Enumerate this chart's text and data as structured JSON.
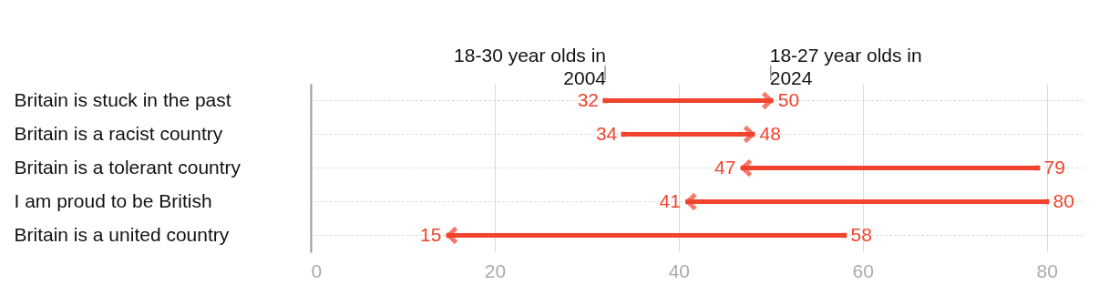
{
  "chart_data": {
    "type": "scatter",
    "categories": [
      "Britain is stuck in the past",
      "Britain is a racist country",
      "Britain is a tolerant country",
      "I am proud to be British",
      "Britain is a united country"
    ],
    "series": [
      {
        "name": "18-30 year olds in 2004",
        "color": "#f2432d",
        "values": [
          32,
          34,
          79,
          80,
          58
        ]
      },
      {
        "name": "18-27 year olds in 2024",
        "color": "#f2432d",
        "values": [
          50,
          48,
          47,
          41,
          15
        ]
      }
    ],
    "xlim": [
      0,
      84
    ],
    "xticks": [
      0,
      20,
      40,
      60,
      80
    ],
    "grid": true,
    "data_labels": true,
    "orientation": "horizontal"
  }
}
